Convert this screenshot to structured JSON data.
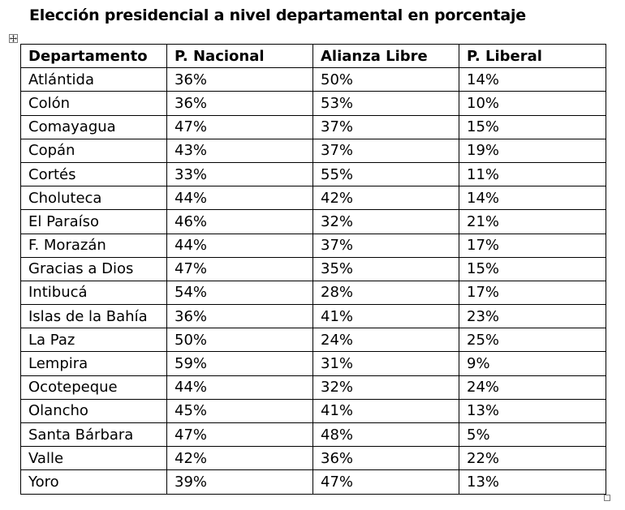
{
  "document": {
    "title": "Elección presidencial  a nivel departamental  en porcentaje"
  },
  "table": {
    "headers": [
      "Departamento",
      "P. Nacional",
      "Alianza Libre",
      "P. Liberal"
    ],
    "rows": [
      [
        "Atlántida",
        "36%",
        "50%",
        "14%"
      ],
      [
        "Colón",
        "36%",
        "53%",
        "10%"
      ],
      [
        "Comayagua",
        "47%",
        "37%",
        "15%"
      ],
      [
        "Copán",
        "43%",
        "37%",
        "19%"
      ],
      [
        "Cortés",
        "33%",
        "55%",
        "11%"
      ],
      [
        "Choluteca",
        "44%",
        "42%",
        "14%"
      ],
      [
        "El Paraíso",
        "46%",
        "32%",
        "21%"
      ],
      [
        "F. Morazán",
        "44%",
        "37%",
        "17%"
      ],
      [
        "Gracias a Dios",
        "47%",
        "35%",
        "15%"
      ],
      [
        "Intibucá",
        "54%",
        "28%",
        "17%"
      ],
      [
        "Islas de la Bahía",
        "36%",
        "41%",
        "23%"
      ],
      [
        "La Paz",
        "50%",
        "24%",
        "25%"
      ],
      [
        "Lempira",
        "59%",
        "31%",
        "9%"
      ],
      [
        "Ocotepeque",
        "44%",
        "32%",
        "24%"
      ],
      [
        "Olancho",
        "45%",
        "41%",
        "13%"
      ],
      [
        "Santa Bárbara",
        "47%",
        "48%",
        "5%"
      ],
      [
        "Valle",
        "42%",
        "36%",
        "22%"
      ],
      [
        "Yoro",
        "39%",
        "47%",
        "13%"
      ]
    ]
  },
  "icons": {
    "move_handle": "four-way-arrow-icon",
    "resize_handle": "resize-handle-icon"
  }
}
